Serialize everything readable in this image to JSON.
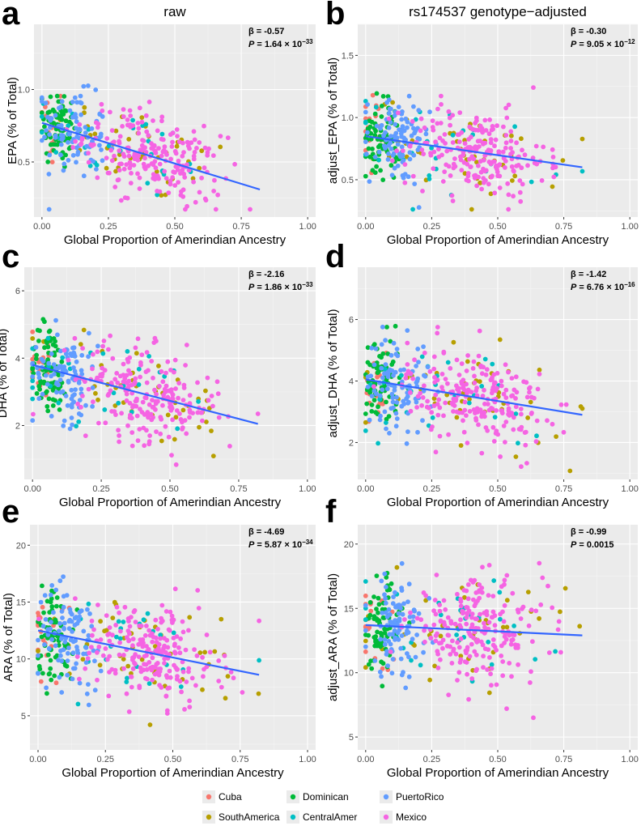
{
  "columns": {
    "left": "raw",
    "right": "rs174537 genotype−adjusted"
  },
  "groups": [
    {
      "name": "Cuba",
      "color": "#F8766D"
    },
    {
      "name": "SouthAmerica",
      "color": "#B79F00"
    },
    {
      "name": "Dominican",
      "color": "#00BA38"
    },
    {
      "name": "CentralAmer",
      "color": "#00BFC4"
    },
    {
      "name": "PuertoRico",
      "color": "#619CFF"
    },
    {
      "name": "Mexico",
      "color": "#F564E3"
    }
  ],
  "chart_data": [
    {
      "id": "a",
      "type": "scatter",
      "letter": "a",
      "xlabel": "Global Proportion of Amerindian Ancestry",
      "ylabel": "EPA (% of Total)",
      "xlim": [
        -0.03,
        1.03
      ],
      "ylim": [
        0.12,
        1.45
      ],
      "xticks": [
        0,
        0.25,
        0.5,
        0.75,
        1.0
      ],
      "xtick_labels": [
        "0.00",
        "0.25",
        "0.50",
        "0.75",
        "1.00"
      ],
      "yticks": [
        0.5,
        1.0
      ],
      "ytick_labels": [
        "0.5",
        "1.0"
      ],
      "beta": "-0.57",
      "p_mantissa": "1.64",
      "p_exp": "−33",
      "fit": {
        "x": [
          0.0,
          0.82
        ],
        "y": [
          0.77,
          0.31
        ]
      }
    },
    {
      "id": "b",
      "type": "scatter",
      "letter": "b",
      "xlabel": "Global Proportion of Amerindian Ancestry",
      "ylabel": "adjust_EPA (% of Total)",
      "xlim": [
        -0.03,
        1.03
      ],
      "ylim": [
        0.2,
        1.75
      ],
      "xticks": [
        0,
        0.25,
        0.5,
        0.75,
        1.0
      ],
      "xtick_labels": [
        "0.00",
        "0.25",
        "0.50",
        "0.75",
        "1.00"
      ],
      "yticks": [
        0.5,
        1.0,
        1.5
      ],
      "ytick_labels": [
        "0.5",
        "1.0",
        "1.5"
      ],
      "beta": "-0.30",
      "p_mantissa": "9.05",
      "p_exp": "−12",
      "fit": {
        "x": [
          0.0,
          0.82
        ],
        "y": [
          0.85,
          0.6
        ]
      }
    },
    {
      "id": "c",
      "type": "scatter",
      "letter": "c",
      "xlabel": "Global Proportion of Amerindian Ancestry",
      "ylabel": "DHA (% of Total)",
      "xlim": [
        -0.03,
        1.03
      ],
      "ylim": [
        0.4,
        6.7
      ],
      "xticks": [
        0,
        0.25,
        0.5,
        0.75,
        1.0
      ],
      "xtick_labels": [
        "0.00",
        "0.25",
        "0.50",
        "0.75",
        "1.00"
      ],
      "yticks": [
        2,
        4,
        6
      ],
      "ytick_labels": [
        "2",
        "4",
        "6"
      ],
      "beta": "-2.16",
      "p_mantissa": "1.86",
      "p_exp": "−33",
      "fit": {
        "x": [
          0.0,
          0.82
        ],
        "y": [
          3.8,
          2.05
        ]
      }
    },
    {
      "id": "d",
      "type": "scatter",
      "letter": "d",
      "xlabel": "Global Proportion of Amerindian Ancestry",
      "ylabel": "adjust_DHA (% of Total)",
      "xlim": [
        -0.03,
        1.03
      ],
      "ylim": [
        0.8,
        7.7
      ],
      "xticks": [
        0,
        0.25,
        0.5,
        0.75,
        1.0
      ],
      "xtick_labels": [
        "0.00",
        "0.25",
        "0.50",
        "0.75",
        "1.00"
      ],
      "yticks": [
        2,
        4,
        6
      ],
      "ytick_labels": [
        "2",
        "4",
        "6"
      ],
      "beta": "-1.42",
      "p_mantissa": "6.76",
      "p_exp": "−16",
      "fit": {
        "x": [
          0.0,
          0.82
        ],
        "y": [
          4.05,
          2.9
        ]
      }
    },
    {
      "id": "e",
      "type": "scatter",
      "letter": "e",
      "xlabel": "Global Proportion of Amerindian Ancestry",
      "ylabel": "ARA (% of Total)",
      "xlim": [
        -0.03,
        1.03
      ],
      "ylim": [
        2.0,
        21.8
      ],
      "xticks": [
        0,
        0.25,
        0.5,
        0.75,
        1.0
      ],
      "xtick_labels": [
        "0.00",
        "0.25",
        "0.50",
        "0.75",
        "1.00"
      ],
      "yticks": [
        5,
        10,
        15,
        20
      ],
      "ytick_labels": [
        "5",
        "10",
        "15",
        "20"
      ],
      "beta": "-4.69",
      "p_mantissa": "5.87",
      "p_exp": "−34",
      "fit": {
        "x": [
          0.0,
          0.82
        ],
        "y": [
          12.5,
          8.6
        ]
      }
    },
    {
      "id": "f",
      "type": "scatter",
      "letter": "f",
      "xlabel": "Global Proportion of Amerindian Ancestry",
      "ylabel": "adjust_ARA (% of Total)",
      "xlim": [
        -0.03,
        1.03
      ],
      "ylim": [
        4.0,
        21.5
      ],
      "xticks": [
        0,
        0.25,
        0.5,
        0.75,
        1.0
      ],
      "xtick_labels": [
        "0.00",
        "0.25",
        "0.50",
        "0.75",
        "1.00"
      ],
      "yticks": [
        5,
        10,
        15,
        20
      ],
      "ytick_labels": [
        "5",
        "10",
        "15",
        "20"
      ],
      "beta": "-0.99",
      "p_plain": "0.0015",
      "fit": {
        "x": [
          0.0,
          0.82
        ],
        "y": [
          13.7,
          12.9
        ]
      }
    }
  ]
}
